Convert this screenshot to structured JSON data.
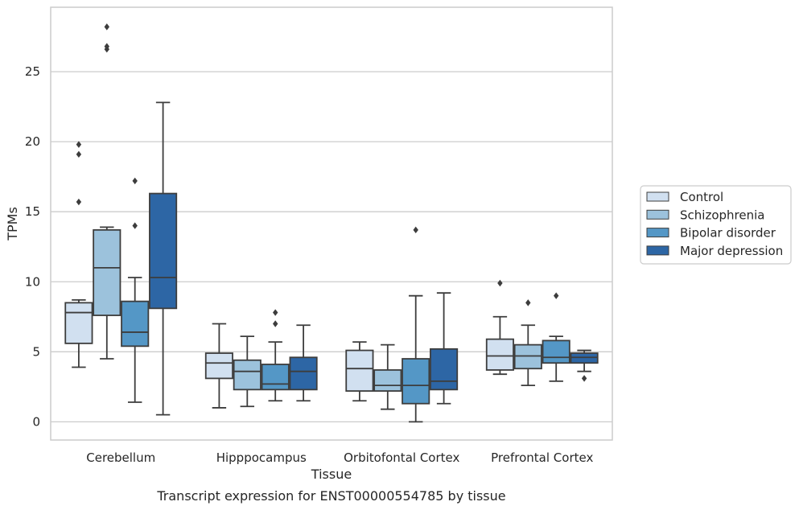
{
  "chart_data": {
    "type": "box",
    "caption": "Transcript expression for ENST00000554785 by tissue",
    "xlabel": "Tissue",
    "ylabel": "TPMs",
    "ylim": [
      -1.3,
      29.6
    ],
    "yticks": [
      0,
      5,
      10,
      15,
      20,
      25
    ],
    "grid": "horizontal",
    "legend_position": "right",
    "categories": [
      "Cerebellum",
      "Hipppocampus",
      "Orbitofontal Cortex",
      "Prefrontal Cortex"
    ],
    "series": [
      {
        "name": "Control",
        "color": "#d1e0f0",
        "boxes": [
          {
            "min": 3.9,
            "q1": 5.6,
            "median": 7.8,
            "q3": 8.5,
            "max": 8.7,
            "outliers": [
              15.7,
              19.1,
              19.8
            ]
          },
          {
            "min": 1.0,
            "q1": 3.1,
            "median": 4.2,
            "q3": 4.9,
            "max": 7.0,
            "outliers": []
          },
          {
            "min": 1.5,
            "q1": 2.2,
            "median": 3.8,
            "q3": 5.1,
            "max": 5.7,
            "outliers": []
          },
          {
            "min": 3.4,
            "q1": 3.7,
            "median": 4.7,
            "q3": 5.9,
            "max": 7.5,
            "outliers": [
              9.9
            ]
          }
        ]
      },
      {
        "name": "Schizophrenia",
        "color": "#9cc2dc",
        "boxes": [
          {
            "min": 4.5,
            "q1": 7.6,
            "median": 11.0,
            "q3": 13.7,
            "max": 13.9,
            "outliers": [
              26.6,
              26.8,
              28.2
            ]
          },
          {
            "min": 1.1,
            "q1": 2.3,
            "median": 3.6,
            "q3": 4.4,
            "max": 6.1,
            "outliers": []
          },
          {
            "min": 0.9,
            "q1": 2.2,
            "median": 2.6,
            "q3": 3.7,
            "max": 5.5,
            "outliers": []
          },
          {
            "min": 2.6,
            "q1": 3.8,
            "median": 4.7,
            "q3": 5.5,
            "max": 6.9,
            "outliers": [
              8.5
            ]
          }
        ]
      },
      {
        "name": "Bipolar disorder",
        "color": "#5497c6",
        "boxes": [
          {
            "min": 1.4,
            "q1": 5.4,
            "median": 6.4,
            "q3": 8.6,
            "max": 10.3,
            "outliers": [
              14.0,
              17.2
            ]
          },
          {
            "min": 1.5,
            "q1": 2.3,
            "median": 2.7,
            "q3": 4.1,
            "max": 5.7,
            "outliers": [
              7.0,
              7.8
            ]
          },
          {
            "min": 0.0,
            "q1": 1.3,
            "median": 2.6,
            "q3": 4.5,
            "max": 9.0,
            "outliers": [
              13.7
            ]
          },
          {
            "min": 2.9,
            "q1": 4.2,
            "median": 4.6,
            "q3": 5.8,
            "max": 6.1,
            "outliers": [
              9.0
            ]
          }
        ]
      },
      {
        "name": "Major depression",
        "color": "#2d66a5",
        "boxes": [
          {
            "min": 0.5,
            "q1": 8.1,
            "median": 10.3,
            "q3": 16.3,
            "max": 22.8,
            "outliers": []
          },
          {
            "min": 1.5,
            "q1": 2.3,
            "median": 3.6,
            "q3": 4.6,
            "max": 6.9,
            "outliers": []
          },
          {
            "min": 1.3,
            "q1": 2.3,
            "median": 2.9,
            "q3": 5.2,
            "max": 9.2,
            "outliers": []
          },
          {
            "min": 3.6,
            "q1": 4.2,
            "median": 4.6,
            "q3": 4.9,
            "max": 5.1,
            "outliers": [
              3.1
            ]
          }
        ]
      }
    ]
  }
}
